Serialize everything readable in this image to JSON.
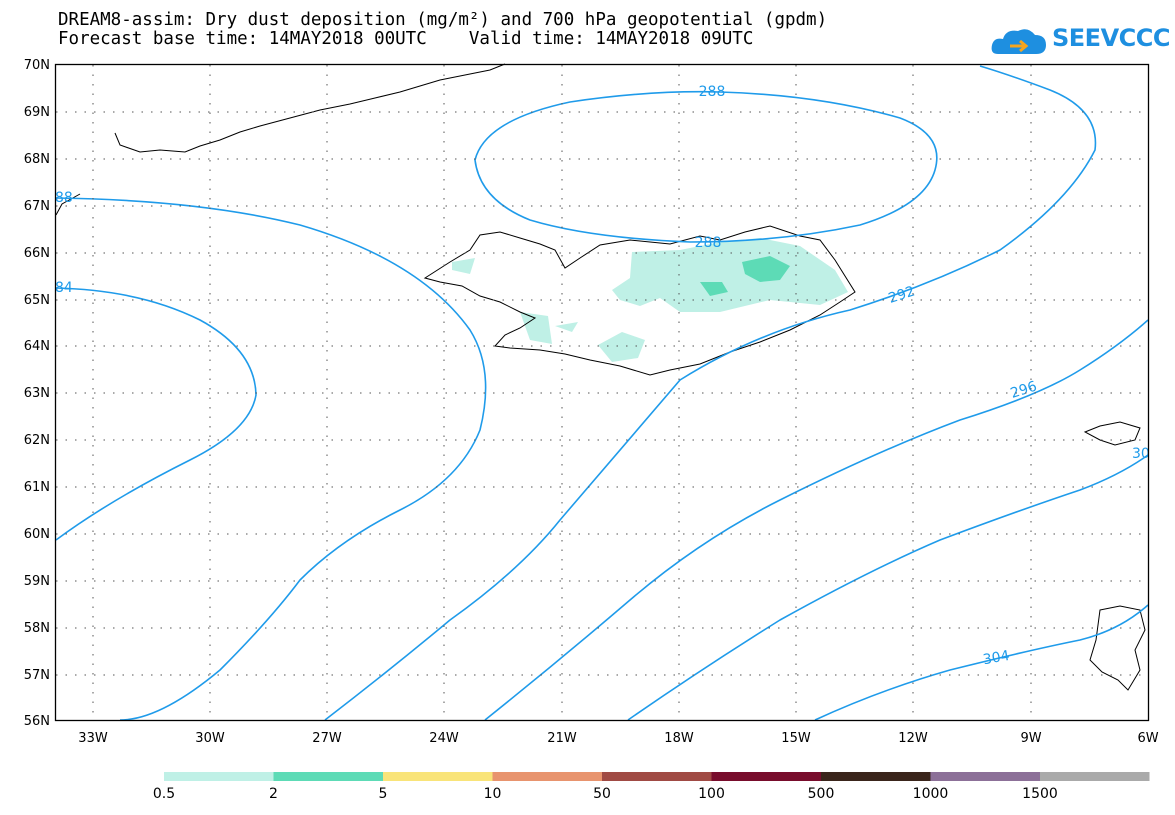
{
  "header": {
    "title_line1": "DREAM8-assim: Dry dust deposition (mg/m²) and 700 hPa geopotential (gpdm)",
    "title_line2": "Forecast base time: 14MAY2018 00UTC    Valid time: 14MAY2018 09UTC"
  },
  "logo": {
    "text": "SEEVCCC",
    "icon": "cloud-icon",
    "color": "#1e8fe0"
  },
  "axes": {
    "lat_labels": [
      "70N",
      "69N",
      "68N",
      "67N",
      "66N",
      "65N",
      "64N",
      "63N",
      "62N",
      "61N",
      "60N",
      "59N",
      "58N",
      "57N",
      "56N"
    ],
    "lon_labels": [
      "33W",
      "30W",
      "27W",
      "24W",
      "21W",
      "18W",
      "15W",
      "12W",
      "9W",
      "6W"
    ]
  },
  "contour_labels": [
    "288",
    "288",
    "292",
    "296",
    "304",
    "88",
    "84",
    "30"
  ],
  "legend": {
    "colors": [
      "#bff0e6",
      "#5ddbb6",
      "#f9e479",
      "#e8946e",
      "#a04a44",
      "#780c2c",
      "#3a251b",
      "#8c7098",
      "#aaaaaa"
    ],
    "labels": [
      "0.5",
      "2",
      "5",
      "10",
      "50",
      "100",
      "500",
      "1000",
      "1500"
    ]
  },
  "colors": {
    "contour": "#1f9bea",
    "coast": "#000000"
  }
}
